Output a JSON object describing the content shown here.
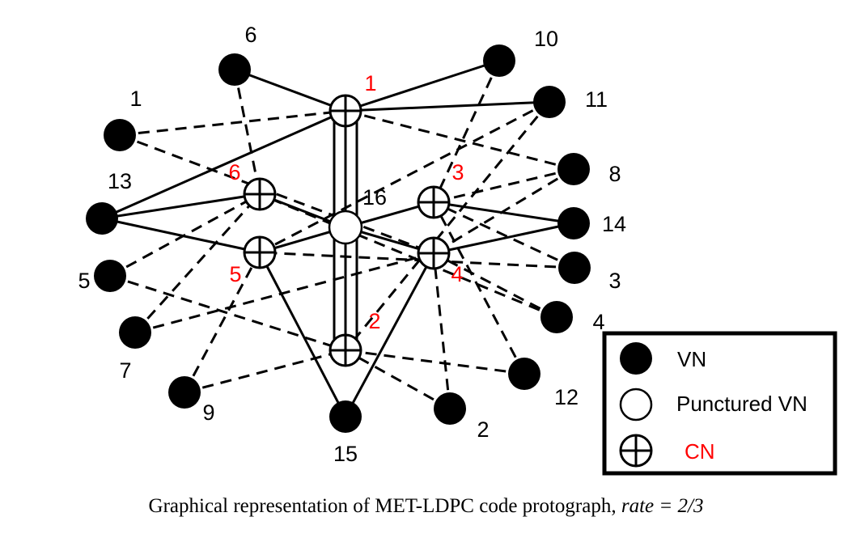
{
  "figure": {
    "caption_prefix": "Graphical representation of MET-LDPC code protograph,",
    "caption_math": "rate = 2/3"
  },
  "legend": {
    "vn": "VN",
    "punctured_vn": "Punctured VN",
    "cn": "CN"
  },
  "colors": {
    "cn_label": "#ff0000",
    "vn_label": "#000000",
    "edge": "#000000",
    "legend_border": "#000000"
  },
  "variable_nodes": [
    {
      "id": "1",
      "label": "1"
    },
    {
      "id": "2",
      "label": "2"
    },
    {
      "id": "3",
      "label": "3"
    },
    {
      "id": "4",
      "label": "4"
    },
    {
      "id": "5",
      "label": "5"
    },
    {
      "id": "6",
      "label": "6"
    },
    {
      "id": "7",
      "label": "7"
    },
    {
      "id": "8",
      "label": "8"
    },
    {
      "id": "9",
      "label": "9"
    },
    {
      "id": "10",
      "label": "10"
    },
    {
      "id": "11",
      "label": "11"
    },
    {
      "id": "12",
      "label": "12"
    },
    {
      "id": "13",
      "label": "13"
    },
    {
      "id": "14",
      "label": "14"
    },
    {
      "id": "15",
      "label": "15"
    },
    {
      "id": "16",
      "label": "16",
      "punctured": true
    }
  ],
  "check_nodes": [
    {
      "id": "c1",
      "label": "1"
    },
    {
      "id": "c2",
      "label": "2"
    },
    {
      "id": "c3",
      "label": "3"
    },
    {
      "id": "c4",
      "label": "4"
    },
    {
      "id": "c5",
      "label": "5"
    },
    {
      "id": "c6",
      "label": "6"
    }
  ],
  "edges": [
    {
      "from": "6",
      "to": "c1",
      "style": "solid"
    },
    {
      "from": "10",
      "to": "c1",
      "style": "solid"
    },
    {
      "from": "11",
      "to": "c1",
      "style": "solid"
    },
    {
      "from": "13",
      "to": "c1",
      "style": "solid"
    },
    {
      "from": "1",
      "to": "c1",
      "style": "dashed"
    },
    {
      "from": "8",
      "to": "c1",
      "style": "dashed"
    },
    {
      "from": "16",
      "to": "c1",
      "style": "solid"
    },
    {
      "from": "16",
      "to": "c2",
      "style": "solid"
    },
    {
      "from": "13",
      "to": "c6",
      "style": "solid"
    },
    {
      "from": "13",
      "to": "c5",
      "style": "solid"
    },
    {
      "from": "16",
      "to": "c6",
      "style": "solid"
    },
    {
      "from": "16",
      "to": "c5",
      "style": "solid"
    },
    {
      "from": "16",
      "to": "c3",
      "style": "solid"
    },
    {
      "from": "16",
      "to": "c4",
      "style": "solid"
    },
    {
      "from": "14",
      "to": "c3",
      "style": "solid"
    },
    {
      "from": "14",
      "to": "c4",
      "style": "solid"
    },
    {
      "from": "15",
      "to": "c5",
      "style": "solid"
    },
    {
      "from": "15",
      "to": "c4",
      "style": "solid"
    },
    {
      "from": "6",
      "to": "c6",
      "style": "dashed"
    },
    {
      "from": "1",
      "to": "c4",
      "style": "dashed"
    },
    {
      "from": "5",
      "to": "c6",
      "style": "dashed"
    },
    {
      "from": "7",
      "to": "c6",
      "style": "dashed"
    },
    {
      "from": "9",
      "to": "c5",
      "style": "dashed"
    },
    {
      "from": "10",
      "to": "c3",
      "style": "dashed"
    },
    {
      "from": "11",
      "to": "c5",
      "style": "dashed"
    },
    {
      "from": "8",
      "to": "c3",
      "style": "dashed"
    },
    {
      "from": "8",
      "to": "c4",
      "style": "dashed"
    },
    {
      "from": "3",
      "to": "c3",
      "style": "dashed"
    },
    {
      "from": "3",
      "to": "c5",
      "style": "dashed"
    },
    {
      "from": "4",
      "to": "c6",
      "style": "dashed"
    },
    {
      "from": "4",
      "to": "c4",
      "style": "dashed"
    },
    {
      "from": "7",
      "to": "c4",
      "style": "dashed"
    },
    {
      "from": "9",
      "to": "c2",
      "style": "dashed"
    },
    {
      "from": "12",
      "to": "c2",
      "style": "dashed"
    },
    {
      "from": "12",
      "to": "c3",
      "style": "dashed"
    },
    {
      "from": "2",
      "to": "c2",
      "style": "dashed"
    },
    {
      "from": "2",
      "to": "c4",
      "style": "dashed"
    },
    {
      "from": "5",
      "to": "c2",
      "style": "dashed"
    },
    {
      "from": "11",
      "to": "c2",
      "style": "dashed"
    }
  ]
}
